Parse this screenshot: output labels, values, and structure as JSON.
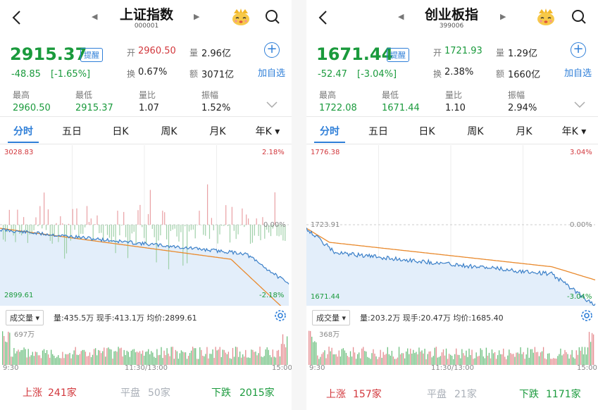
{
  "colors": {
    "up": "#d2373c",
    "down": "#1a9a3c",
    "accent": "#2f7fd8",
    "price_line": "#3a7fc8",
    "avg_line": "#e98a2e",
    "fill": "#e3eefa"
  },
  "panels": [
    {
      "title": "上证指数",
      "code": "000001",
      "price": "2915.37",
      "remind_label": "提醒",
      "change": "-48.85",
      "change_pct": "[-1.65%]",
      "open_label": "开",
      "open": "2960.50",
      "volume_label": "量",
      "volume": "2.96亿",
      "turnover_label": "换",
      "turnover": "0.67%",
      "amount_label": "额",
      "amount": "3071亿",
      "add_label": "加自选",
      "high_label": "最高",
      "high": "2960.50",
      "low_label": "最低",
      "low": "2915.37",
      "ratio_label": "量比",
      "ratio": "1.07",
      "amplitude_label": "振幅",
      "amplitude": "1.52%",
      "tabs": [
        "分时",
        "五日",
        "日K",
        "周K",
        "月K",
        "年K"
      ],
      "chart_top_left": "3028.83",
      "chart_top_right": "2.18%",
      "chart_mid_right": "0.00%",
      "chart_bottom_left": "2899.61",
      "chart_bottom_right": "-2.18%",
      "indicator_label": "成交量",
      "vol_info": "量:435.5万  现手:413.1万  均价:2899.61",
      "vol_max": "697万",
      "time_start": "9:30",
      "time_mid": "11:30/13:00",
      "time_end": "15:00",
      "up_label": "上涨",
      "up_count": "241家",
      "flat_label": "平盘",
      "flat_count": "50家",
      "down_label": "下跌",
      "down_count": "2015家"
    },
    {
      "title": "创业板指",
      "code": "399006",
      "price": "1671.44",
      "remind_label": "提醒",
      "change": "-52.47",
      "change_pct": "[-3.04%]",
      "open_label": "开",
      "open": "1721.93",
      "volume_label": "量",
      "volume": "1.29亿",
      "turnover_label": "换",
      "turnover": "2.38%",
      "amount_label": "额",
      "amount": "1660亿",
      "add_label": "加自选",
      "high_label": "最高",
      "high": "1722.08",
      "low_label": "最低",
      "low": "1671.44",
      "ratio_label": "量比",
      "ratio": "1.10",
      "amplitude_label": "振幅",
      "amplitude": "2.94%",
      "tabs": [
        "分时",
        "五日",
        "日K",
        "周K",
        "月K",
        "年K"
      ],
      "chart_top_left": "1776.38",
      "chart_top_right": "3.04%",
      "chart_mid_left": "1723.91",
      "chart_mid_right": "0.00%",
      "chart_bottom_left": "1671.44",
      "chart_bottom_right": "-3.04%",
      "indicator_label": "成交量",
      "vol_info": "量:203.2万  现手:20.47万  均价:1685.40",
      "vol_max": "368万",
      "time_start": "9:30",
      "time_mid": "11:30/13:00",
      "time_end": "15:00",
      "up_label": "上涨",
      "up_count": "157家",
      "flat_label": "平盘",
      "flat_count": "21家",
      "down_label": "下跌",
      "down_count": "1171家"
    }
  ]
}
